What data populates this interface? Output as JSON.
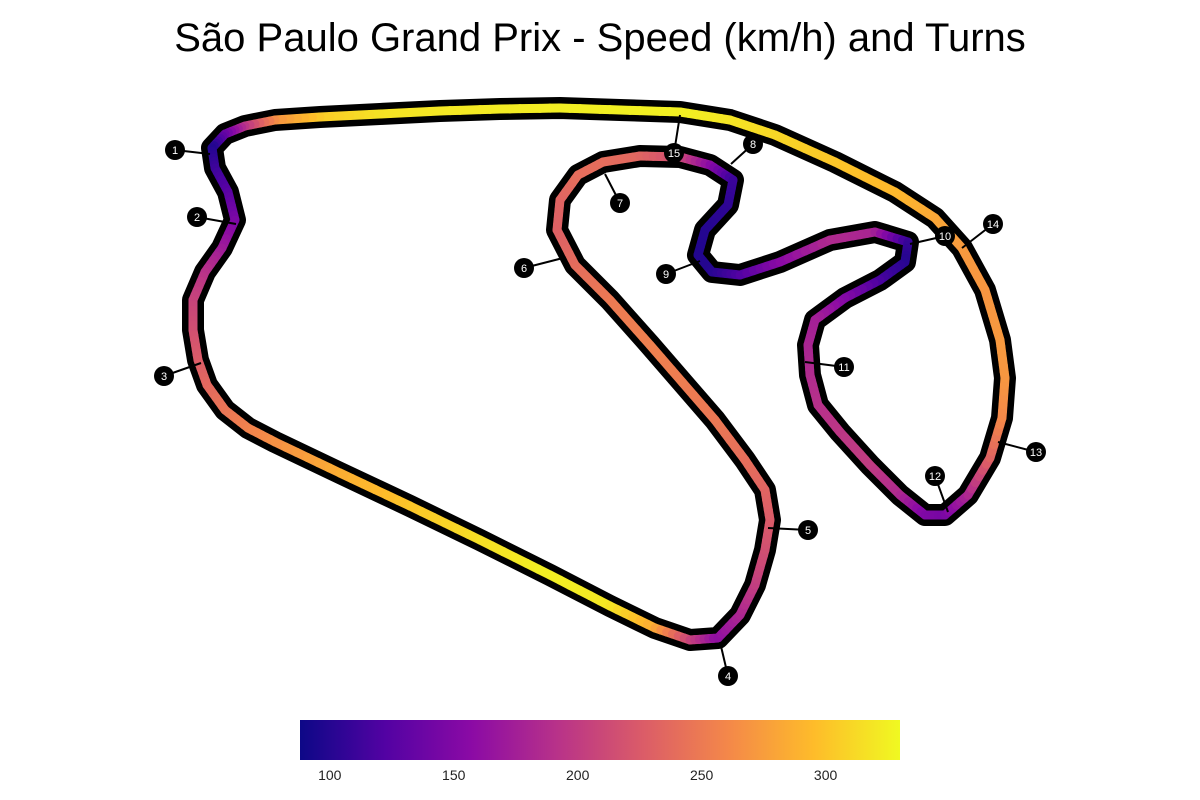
{
  "chart_data": {
    "type": "track-map",
    "title": "São Paulo Grand Prix - Speed (km/h) and Turns",
    "colorbar": {
      "min": 88,
      "max": 330,
      "ticks": [
        100,
        150,
        200,
        250,
        300
      ],
      "colormap": [
        "#0d0887",
        "#5302a3",
        "#8b0aa5",
        "#b83289",
        "#db5c68",
        "#f48849",
        "#febc2a",
        "#f0f921"
      ]
    },
    "turns": [
      {
        "number": "1",
        "speed": 100
      },
      {
        "number": "2",
        "speed": 120
      },
      {
        "number": "3",
        "speed": 230
      },
      {
        "number": "4",
        "speed": 150
      },
      {
        "number": "5",
        "speed": 220
      },
      {
        "number": "6",
        "speed": 230
      },
      {
        "number": "7",
        "speed": 230
      },
      {
        "number": "8",
        "speed": 110
      },
      {
        "number": "9",
        "speed": 100
      },
      {
        "number": "10",
        "speed": 95
      },
      {
        "number": "11",
        "speed": 180
      },
      {
        "number": "12",
        "speed": 140
      },
      {
        "number": "13",
        "speed": 250
      },
      {
        "number": "14",
        "speed": 265
      },
      {
        "number": "15",
        "speed": 320
      }
    ]
  }
}
